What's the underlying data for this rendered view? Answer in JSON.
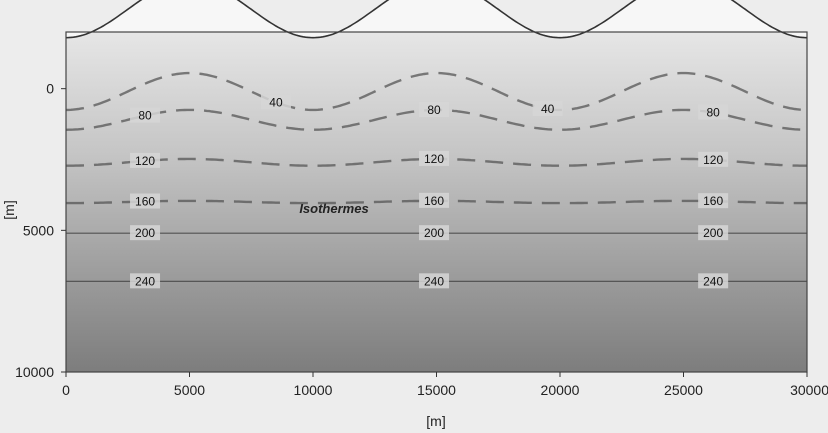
{
  "chart_data": {
    "type": "line",
    "title": "",
    "xlabel": "[m]",
    "ylabel": "[m]",
    "xlim": [
      0,
      30000
    ],
    "ylim": [
      10000,
      -2000
    ],
    "x_ticks": [
      "0",
      "5000",
      "10000",
      "15000",
      "20000",
      "25000",
      "30000"
    ],
    "y_ticks": [
      "0",
      "5000",
      "10000"
    ],
    "annotation": "Isothermes",
    "surface_topography": {
      "x": [
        0,
        5000,
        10000,
        15000,
        20000,
        25000,
        30000
      ],
      "depth": [
        -1800,
        -3800,
        -1800,
        -3800,
        -1800,
        -3800,
        -1800
      ]
    },
    "isotherms": [
      {
        "name": "40",
        "labels": [
          "40",
          "40"
        ]
      },
      {
        "name": "80",
        "labels": [
          "80",
          "80",
          "80"
        ]
      },
      {
        "name": "120",
        "labels": [
          "120",
          "120",
          "120"
        ]
      },
      {
        "name": "160",
        "labels": [
          "160",
          "160",
          "160"
        ]
      },
      {
        "name": "200",
        "labels": [
          "200",
          "200",
          "200"
        ]
      },
      {
        "name": "240",
        "labels": [
          "240",
          "240",
          "240"
        ]
      }
    ],
    "grid": false,
    "legend": "none"
  }
}
